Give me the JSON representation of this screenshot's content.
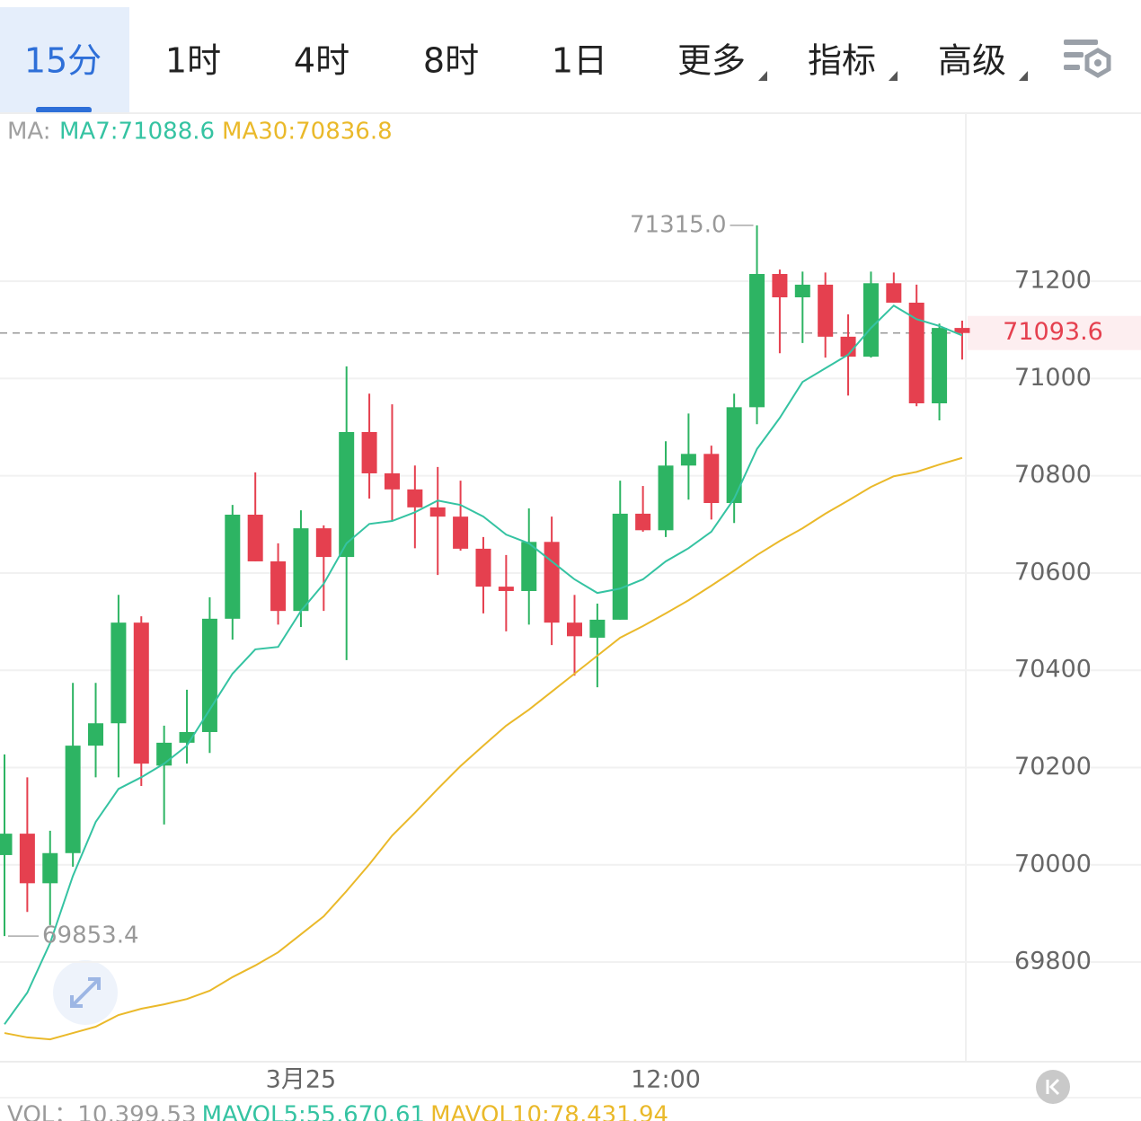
{
  "tabs": [
    {
      "label": "15分",
      "dropdown": false
    },
    {
      "label": "1时",
      "dropdown": false
    },
    {
      "label": "4时",
      "dropdown": false
    },
    {
      "label": "8时",
      "dropdown": false
    },
    {
      "label": "1日",
      "dropdown": false
    },
    {
      "label": "更多",
      "dropdown": true
    },
    {
      "label": "指标",
      "dropdown": true
    },
    {
      "label": "高级",
      "dropdown": true
    }
  ],
  "selected_tab": 0,
  "chart_data": {
    "type": "candlestick",
    "legend_prefix": "MA:",
    "categories": [
      null,
      null,
      null,
      null,
      null,
      null,
      null,
      null,
      null,
      null,
      null,
      null,
      null,
      "3月25",
      null,
      null,
      null,
      null,
      null,
      null,
      null,
      null,
      null,
      null,
      null,
      null,
      null,
      null,
      null,
      "12:00",
      null,
      null,
      null,
      null,
      null,
      null,
      null,
      null,
      null,
      null,
      null,
      null,
      null
    ],
    "ohlc": [
      [
        70020,
        70227,
        69853.4,
        70064
      ],
      [
        70064,
        70180,
        69903,
        69962
      ],
      [
        69962,
        70070,
        69876,
        70024
      ],
      [
        70024,
        70374,
        69996,
        70245
      ],
      [
        70245,
        70374,
        70180,
        70291
      ],
      [
        70291,
        70555,
        70180,
        70498
      ],
      [
        70498,
        70511,
        70162,
        70208
      ],
      [
        70204,
        70286,
        70083,
        70251
      ],
      [
        70251,
        70360,
        70208,
        70273
      ],
      [
        70273,
        70550,
        70230,
        70506
      ],
      [
        70506,
        70740,
        70463,
        70720
      ],
      [
        70720,
        70807,
        70624,
        70624
      ],
      [
        70624,
        70661,
        70494,
        70522
      ],
      [
        70522,
        70729,
        70489,
        70692
      ],
      [
        70692,
        70698,
        70522,
        70633
      ],
      [
        70633,
        71025,
        70421,
        70890
      ],
      [
        70890,
        70969,
        70753,
        70805
      ],
      [
        70805,
        70947,
        70707,
        70772
      ],
      [
        70772,
        70821,
        70651,
        70735
      ],
      [
        70735,
        70818,
        70596,
        70716
      ],
      [
        70716,
        70790,
        70646,
        70650
      ],
      [
        70650,
        70674,
        70517,
        70572
      ],
      [
        70572,
        70637,
        70480,
        70563
      ],
      [
        70563,
        70733,
        70494,
        70664
      ],
      [
        70664,
        70716,
        70452,
        70498
      ],
      [
        70498,
        70555,
        70389,
        70470
      ],
      [
        70467,
        70537,
        70365,
        70504
      ],
      [
        70504,
        70790,
        70504,
        70722
      ],
      [
        70722,
        70779,
        70685,
        70688
      ],
      [
        70688,
        70871,
        70674,
        70821
      ],
      [
        70821,
        70928,
        70751,
        70845
      ],
      [
        70845,
        70862,
        70710,
        70744
      ],
      [
        70744,
        70969,
        70703,
        70941
      ],
      [
        70941,
        71315,
        70906,
        71215
      ],
      [
        71215,
        71224,
        71052,
        71167
      ],
      [
        71167,
        71220,
        71073,
        71193
      ],
      [
        71193,
        71218,
        71043,
        71086
      ],
      [
        71086,
        71132,
        70965,
        71045
      ],
      [
        71045,
        71220,
        71043,
        71196
      ],
      [
        71196,
        71218,
        71156,
        71156
      ],
      [
        71156,
        71193,
        70943,
        70949
      ],
      [
        70949,
        71113,
        70914,
        71104
      ],
      [
        71104,
        71119,
        71039,
        71093.6
      ]
    ],
    "up_color": "#2db463",
    "down_color": "#e5404f",
    "series": [
      {
        "name": "MA7:71088.6",
        "color": "#35c3a2",
        "values": [
          69672,
          69737,
          69839,
          69977,
          70088,
          70156,
          70180,
          70208,
          70245,
          70319,
          70393,
          70443,
          70448,
          70522,
          70578,
          70661,
          70701,
          70707,
          70725,
          70749,
          70740,
          70716,
          70679,
          70661,
          70624,
          70587,
          70559,
          70568,
          70587,
          70624,
          70651,
          70685,
          70753,
          70855,
          70919,
          70993,
          71021,
          71049,
          71104,
          71150,
          71122,
          71108,
          71088.6
        ]
      },
      {
        "name": "MA30:70836.8",
        "color": "#eab92a",
        "values": [
          69654,
          69645,
          69641,
          69654,
          69667,
          69691,
          69704,
          69713,
          69724,
          69741,
          69769,
          69793,
          69820,
          69857,
          69894,
          69946,
          70001,
          70060,
          70107,
          70156,
          70203,
          70245,
          70286,
          70319,
          70356,
          70393,
          70430,
          70467,
          70491,
          70517,
          70544,
          70574,
          70605,
          70637,
          70666,
          70692,
          70722,
          70749,
          70777,
          70799,
          70808,
          70823,
          70836.8
        ]
      }
    ],
    "ylim": [
      69595,
      71542
    ],
    "yticks": [
      69800,
      70000,
      70200,
      70400,
      70600,
      70800,
      71000,
      71200
    ],
    "grid": true,
    "last_price": 71093.6,
    "annotations": [
      {
        "value": 71315,
        "label": "71315.0",
        "index": 33
      },
      {
        "value": 69853.4,
        "label": "69853.4",
        "index": 0
      }
    ],
    "volume_legend": [
      {
        "text": "VOL：10,399.53",
        "color": "#9a9a9a"
      },
      {
        "text": "MAVOL5:55,670.61",
        "color": "#35c3a2"
      },
      {
        "text": "MAVOL10:78,431.94",
        "color": "#eab92a"
      }
    ]
  }
}
